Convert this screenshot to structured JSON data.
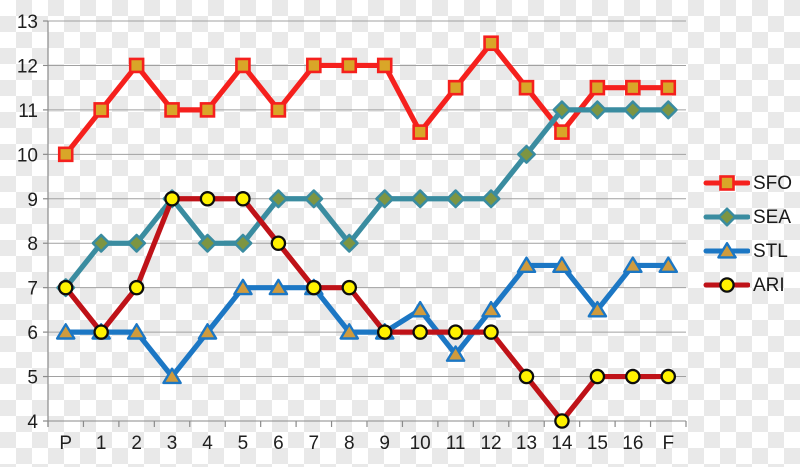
{
  "chart_data": {
    "type": "line",
    "title": "",
    "xlabel": "",
    "ylabel": "",
    "categories": [
      "P",
      "1",
      "2",
      "3",
      "4",
      "5",
      "6",
      "7",
      "8",
      "9",
      "10",
      "11",
      "12",
      "13",
      "14",
      "15",
      "16",
      "F"
    ],
    "series": [
      {
        "name": "SFO",
        "marker": "square",
        "line_color": "#f5201d",
        "marker_fill": "#d9a628",
        "marker_stroke": "#f5201d",
        "values": [
          10,
          11,
          12,
          11,
          11,
          12,
          11,
          12,
          12,
          12,
          10.5,
          11.5,
          12.5,
          11.5,
          10.5,
          11.5,
          11.5,
          11.5
        ]
      },
      {
        "name": "SEA",
        "marker": "diamond",
        "line_color": "#3a8ca0",
        "marker_fill": "#7d9542",
        "marker_stroke": "#3a8ca0",
        "values": [
          7,
          8,
          8,
          9,
          8,
          8,
          9,
          9,
          8,
          9,
          9,
          9,
          9,
          10,
          11,
          11,
          11,
          11
        ]
      },
      {
        "name": "STL",
        "marker": "triangle",
        "line_color": "#1c77c4",
        "marker_fill": "#d09b3d",
        "marker_stroke": "#1c77c4",
        "values": [
          6,
          6,
          6,
          5,
          6,
          7,
          7,
          7,
          6,
          6,
          6.5,
          5.5,
          6.5,
          7.5,
          7.5,
          6.5,
          7.5,
          7.5
        ]
      },
      {
        "name": "ARI",
        "marker": "circle",
        "line_color": "#bf1218",
        "marker_fill": "#fff200",
        "marker_stroke": "#0d0d0d",
        "values": [
          7,
          6,
          7,
          9,
          9,
          9,
          8,
          7,
          7,
          6,
          6,
          6,
          6,
          5,
          4,
          5,
          5,
          5
        ]
      }
    ],
    "ylim": [
      4,
      13
    ],
    "yticks": [
      4,
      5,
      6,
      7,
      8,
      9,
      10,
      11,
      12,
      13
    ],
    "grid": true,
    "grid_color": "#a1a1a1",
    "axis_color": "#8a8a8a",
    "label_color": "#1f1f1f",
    "legend_position": "right"
  }
}
